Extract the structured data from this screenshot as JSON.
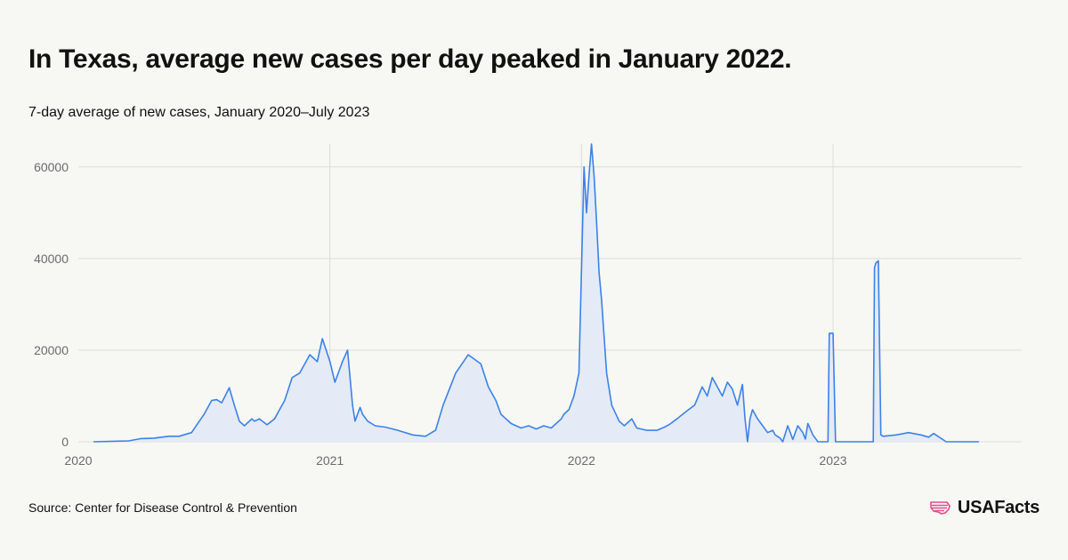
{
  "title": "In Texas, average new cases per day peaked in January 2022.",
  "subtitle": "7-day average of new cases, January 2020–July 2023",
  "source": "Source: Center for Disease Control & Prevention",
  "brand": {
    "name": "USAFacts",
    "logo_icon": "usa-map-flag-icon",
    "logo_color": "#e0508e"
  },
  "colors": {
    "line": "#3b82e8",
    "fill": "#e4ebf6",
    "grid": "#dcdcd8",
    "axis_text": "#6b6b6b"
  },
  "chart_data": {
    "type": "area",
    "title": "In Texas, average new cases per day peaked in January 2022.",
    "subtitle": "7-day average of new cases, January 2020–July 2023",
    "xlabel": "",
    "ylabel": "",
    "xlim": [
      2020.0,
      2023.75
    ],
    "ylim": [
      0,
      65000
    ],
    "x_ticks": [
      2020,
      2021,
      2022,
      2023
    ],
    "x_tick_labels": [
      "2020",
      "2021",
      "2022",
      "2023"
    ],
    "y_ticks": [
      0,
      20000,
      40000,
      60000
    ],
    "y_tick_labels": [
      "0",
      "20000",
      "40000",
      "60000"
    ],
    "grid": true,
    "series": [
      {
        "name": "7-day average of new cases",
        "x": [
          2020.06,
          2020.2,
          2020.25,
          2020.3,
          2020.36,
          2020.4,
          2020.45,
          2020.5,
          2020.53,
          2020.55,
          2020.57,
          2020.6,
          2020.62,
          2020.64,
          2020.66,
          2020.69,
          2020.7,
          2020.72,
          2020.75,
          2020.78,
          2020.8,
          2020.82,
          2020.85,
          2020.88,
          2020.92,
          2020.95,
          2020.97,
          2021.0,
          2021.02,
          2021.04,
          2021.05,
          2021.07,
          2021.08,
          2021.09,
          2021.1,
          2021.12,
          2021.13,
          2021.15,
          2021.18,
          2021.22,
          2021.27,
          2021.33,
          2021.38,
          2021.42,
          2021.45,
          2021.5,
          2021.55,
          2021.6,
          2021.63,
          2021.66,
          2021.68,
          2021.7,
          2021.72,
          2021.74,
          2021.76,
          2021.79,
          2021.82,
          2021.85,
          2021.88,
          2021.92,
          2021.93,
          2021.95,
          2021.97,
          2021.99,
          2022.01,
          2022.02,
          2022.03,
          2022.04,
          2022.05,
          2022.06,
          2022.07,
          2022.08,
          2022.1,
          2022.12,
          2022.15,
          2022.17,
          2022.2,
          2022.22,
          2022.26,
          2022.3,
          2022.33,
          2022.35,
          2022.38,
          2022.42,
          2022.45,
          2022.48,
          2022.5,
          2022.52,
          2022.54,
          2022.56,
          2022.58,
          2022.6,
          2022.62,
          2022.64,
          2022.65,
          2022.66,
          2022.67,
          2022.68,
          2022.7,
          2022.72,
          2022.74,
          2022.76,
          2022.77,
          2022.79,
          2022.8,
          2022.82,
          2022.84,
          2022.86,
          2022.88,
          2022.89,
          2022.9,
          2022.92,
          2022.94,
          2022.96,
          2022.97,
          2022.98,
          2022.985,
          2023.0,
          2023.01,
          2023.015,
          2023.16,
          2023.165,
          2023.17,
          2023.18,
          2023.19,
          2023.2,
          2023.25,
          2023.3,
          2023.35,
          2023.38,
          2023.4,
          2023.45,
          2023.5,
          2023.55,
          2023.58
        ],
        "values": [
          0,
          200,
          700,
          800,
          1200,
          1200,
          2000,
          6000,
          9000,
          9200,
          8500,
          11800,
          8000,
          4500,
          3500,
          5000,
          4500,
          5000,
          3700,
          5000,
          7000,
          9000,
          14000,
          15000,
          19000,
          17500,
          22500,
          17500,
          13000,
          16000,
          17500,
          20000,
          14000,
          8000,
          4500,
          7500,
          6000,
          4500,
          3500,
          3200,
          2500,
          1500,
          1200,
          2500,
          8000,
          15000,
          19000,
          17000,
          12000,
          9000,
          6000,
          5000,
          4000,
          3500,
          3000,
          3500,
          2800,
          3500,
          3000,
          5000,
          6000,
          7000,
          10000,
          15000,
          60000,
          50000,
          58000,
          65000,
          58000,
          48000,
          37000,
          31000,
          15000,
          8000,
          4500,
          3500,
          5000,
          3000,
          2500,
          2500,
          3200,
          3800,
          5000,
          6800,
          8000,
          12000,
          10000,
          14000,
          12000,
          10000,
          13000,
          11500,
          8000,
          12500,
          5000,
          0,
          5000,
          7000,
          5000,
          3500,
          2000,
          2500,
          1500,
          800,
          0,
          3500,
          500,
          3500,
          2000,
          600,
          4000,
          1500,
          0,
          0,
          0,
          0,
          23700,
          23700,
          0,
          0,
          0,
          38000,
          39000,
          39500,
          1500,
          1200,
          1500,
          2000,
          1500,
          1000,
          1800,
          0,
          0,
          0,
          0
        ]
      }
    ]
  }
}
